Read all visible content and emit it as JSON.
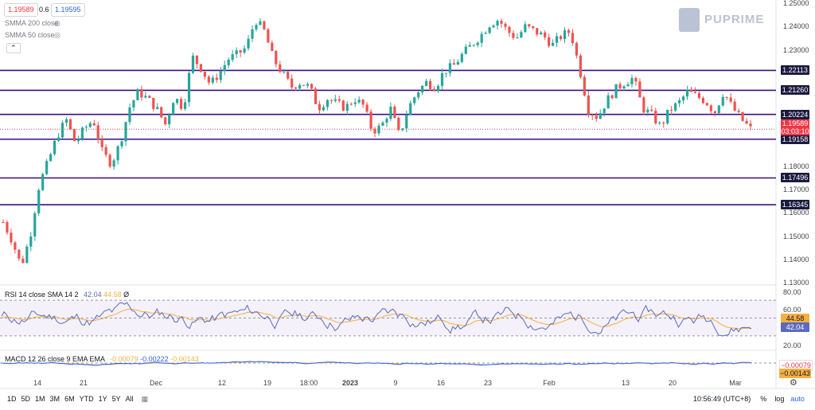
{
  "legend": {
    "bid": "1.19589",
    "spread": "0.6",
    "ask": "1.19595",
    "smma200": "SMMA 200 close",
    "smma50": "SMMA 50 close"
  },
  "brand": {
    "name": "PUPRIME"
  },
  "price_axis": [
    "1.25000",
    "1.24000",
    "1.23000",
    "1.20000",
    "1.18000",
    "1.17000",
    "1.16000",
    "1.15000",
    "1.14000",
    "1.13000"
  ],
  "level_labels": [
    {
      "value": "1.22113",
      "price": 1.22113
    },
    {
      "value": "1.21260",
      "price": 1.2126
    },
    {
      "value": "1.20224",
      "price": 1.20224
    },
    {
      "value": "1.19158",
      "price": 1.19158
    },
    {
      "value": "1.17496",
      "price": 1.17496
    },
    {
      "value": "1.16345",
      "price": 1.16345
    }
  ],
  "current": {
    "price": "1.19589",
    "countdown": "03:03:10"
  },
  "rsi": {
    "legend": "RSI 14 close SMA 14 2",
    "v1": "42.04",
    "v2": "44.58",
    "v3": "Ø",
    "axis": [
      "80.00",
      "60.00",
      "20.00"
    ],
    "label1": "44.58",
    "label2": "42.04"
  },
  "macd": {
    "legend": "MACD 12 26 close 9 EMA EMA",
    "v1": "-0.00079",
    "v2": "-0.00222",
    "v3": "-0.00143",
    "label1": "−0.00079",
    "label2": "−0.00143"
  },
  "time_axis": [
    "14",
    "21",
    "Dec",
    "12",
    "19",
    "18:00",
    "2023",
    "9",
    "16",
    "23",
    "Feb",
    "13",
    "20",
    "Mar"
  ],
  "toolbar": {
    "ranges": [
      "1D",
      "5D",
      "1M",
      "3M",
      "6M",
      "YTD",
      "1Y",
      "5Y",
      "All"
    ],
    "clock": "10:56:49 (UTC+8)",
    "percent": "%",
    "log": "log",
    "auto": "auto"
  },
  "colors": {
    "up": "#26a69a",
    "down": "#ef5350",
    "level": "#3b0f82",
    "rsi": "#5b6abf",
    "rsi_ma": "#f5b041",
    "price_tag": "#f23645"
  },
  "chart_data": {
    "type": "candlestick",
    "ylim": [
      1.13,
      1.25
    ],
    "levels": [
      1.22113,
      1.2126,
      1.20224,
      1.19158,
      1.17496,
      1.16345
    ],
    "close_path": [
      1.156,
      1.148,
      1.137,
      1.15,
      1.172,
      1.182,
      1.193,
      1.2,
      1.19,
      1.196,
      1.2,
      1.186,
      1.181,
      1.19,
      1.205,
      1.212,
      1.209,
      1.205,
      1.198,
      1.21,
      1.205,
      1.227,
      1.222,
      1.215,
      1.22,
      1.226,
      1.228,
      1.231,
      1.243,
      1.238,
      1.226,
      1.22,
      1.214,
      1.216,
      1.214,
      1.205,
      1.209,
      1.207,
      1.205,
      1.209,
      1.206,
      1.195,
      1.197,
      1.205,
      1.193,
      1.205,
      1.212,
      1.216,
      1.214,
      1.221,
      1.223,
      1.228,
      1.232,
      1.236,
      1.241,
      1.243,
      1.238,
      1.235,
      1.24,
      1.238,
      1.236,
      1.232,
      1.236,
      1.238,
      1.222,
      1.204,
      1.201,
      1.208,
      1.213,
      1.216,
      1.218,
      1.205,
      1.202,
      1.197,
      1.204,
      1.207,
      1.212,
      1.21,
      1.208,
      1.203,
      1.212,
      1.205,
      1.2,
      1.196
    ],
    "rsi_range": [
      20,
      80
    ]
  }
}
